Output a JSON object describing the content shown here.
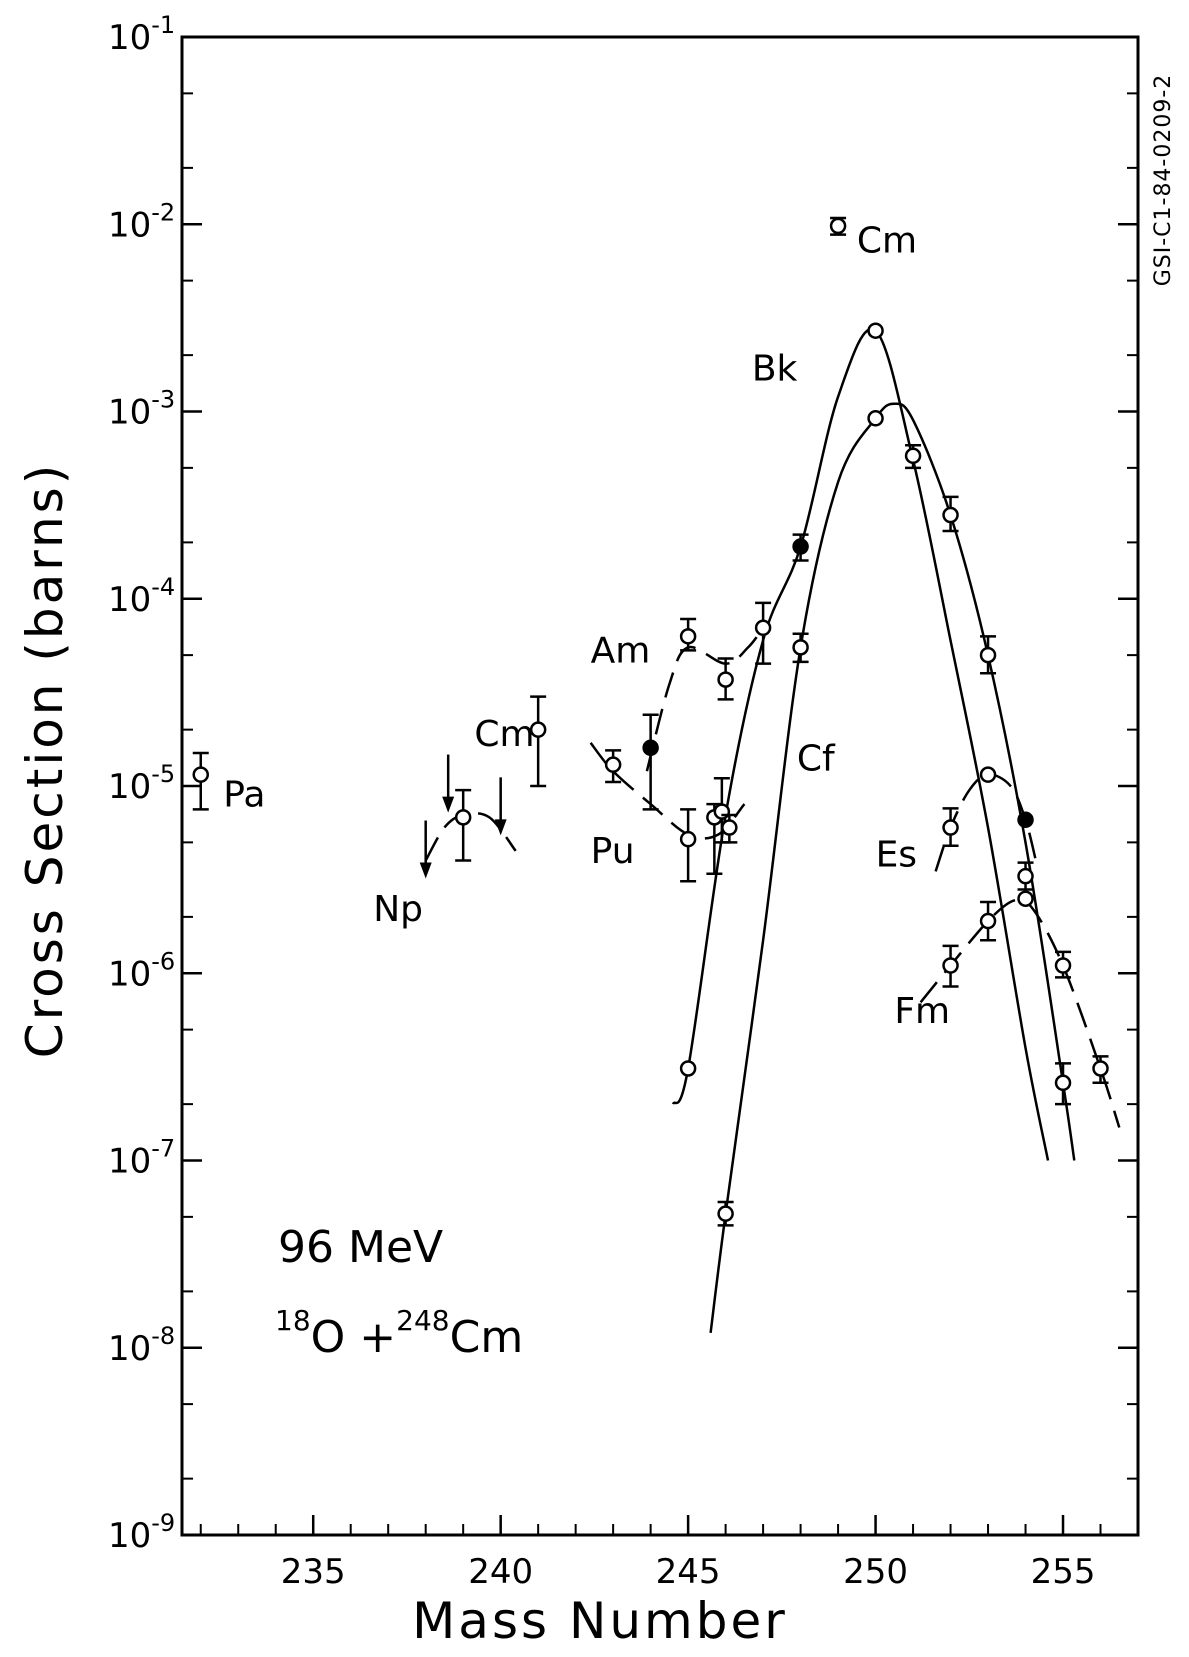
{
  "chart_data": {
    "type": "scatter",
    "title": "",
    "xlabel": "Mass Number",
    "ylabel": "Cross Section (barns)",
    "xlim": [
      231.5,
      257
    ],
    "ylim": [
      1e-09,
      0.1
    ],
    "y_scale": "log",
    "x_ticks": [
      235,
      240,
      245,
      250,
      255
    ],
    "x_tick_labels": [
      "235",
      "240",
      "245",
      "250",
      "255"
    ],
    "y_ticks": [
      {
        "mantissa": "10",
        "exp": "-1"
      },
      {
        "mantissa": "10",
        "exp": "-2"
      },
      {
        "mantissa": "10",
        "exp": "-3"
      },
      {
        "mantissa": "10",
        "exp": "-4"
      },
      {
        "mantissa": "10",
        "exp": "-5"
      },
      {
        "mantissa": "10",
        "exp": "-6"
      },
      {
        "mantissa": "10",
        "exp": "-7"
      },
      {
        "mantissa": "10",
        "exp": "-8"
      },
      {
        "mantissa": "10",
        "exp": "-9"
      }
    ],
    "annotation": {
      "energy": "96 MeV",
      "proj_mass": "18",
      "proj": "O +",
      "target_mass": "248",
      "target": "Cm"
    },
    "side_label": "GSI-C1-84-0209-2",
    "series": [
      {
        "name": "Pa",
        "points": [
          {
            "x": 232,
            "y": 1.15e-05,
            "lo": 7.5e-06,
            "hi": 1.5e-05,
            "filled": false
          }
        ]
      },
      {
        "name": "Np",
        "points": [
          {
            "x": 238,
            "y": 4e-06,
            "upper_limit": true
          },
          {
            "x": 238.6,
            "y": 9e-06,
            "upper_limit": true
          },
          {
            "x": 239,
            "y": 6.8e-06,
            "lo": 4e-06,
            "hi": 9.5e-06,
            "filled": false
          },
          {
            "x": 240,
            "y": 6.8e-06,
            "upper_limit": true
          }
        ]
      },
      {
        "name": "Pu",
        "points": [
          {
            "x": 245,
            "y": 5.2e-06,
            "lo": 3.1e-06,
            "hi": 7.5e-06,
            "filled": false
          },
          {
            "x": 245.7,
            "y": 6.8e-06,
            "lo": 3.4e-06,
            "hi": 8e-06,
            "filled": false
          },
          {
            "x": 245.9,
            "y": 7.3e-06,
            "lo": 5e-06,
            "hi": 1.1e-05,
            "filled": false
          },
          {
            "x": 246.1,
            "y": 6e-06,
            "lo": 5e-06,
            "hi": 7e-06,
            "filled": false
          }
        ]
      },
      {
        "name": "Cm",
        "points": [
          {
            "x": 241,
            "y": 2e-05,
            "lo": 1e-05,
            "hi": 3e-05,
            "filled": false
          },
          {
            "x": 243,
            "y": 1.3e-05,
            "lo": 1.05e-05,
            "hi": 1.55e-05,
            "filled": false
          },
          {
            "x": 244,
            "y": 1.6e-05,
            "lo": 7.5e-06,
            "hi": 2.4e-05,
            "filled": true
          },
          {
            "x": 249,
            "y": 0.0098,
            "lo": 0.0088,
            "hi": 0.0108,
            "filled": false
          }
        ]
      },
      {
        "name": "Am",
        "points": [
          {
            "x": 245,
            "y": 6.3e-05,
            "lo": 5.3e-05,
            "hi": 7.8e-05,
            "filled": false
          },
          {
            "x": 246,
            "y": 3.7e-05,
            "lo": 2.9e-05,
            "hi": 4.8e-05,
            "filled": false
          },
          {
            "x": 247,
            "y": 7e-05,
            "lo": 4.5e-05,
            "hi": 9.5e-05,
            "filled": false
          }
        ]
      },
      {
        "name": "Bk",
        "points": [
          {
            "x": 245,
            "y": 3.1e-07,
            "filled": false
          },
          {
            "x": 248,
            "y": 0.00019,
            "lo": 0.00016,
            "hi": 0.00022,
            "filled": true
          },
          {
            "x": 250,
            "y": 0.0027,
            "filled": false
          }
        ]
      },
      {
        "name": "Cf",
        "points": [
          {
            "x": 246,
            "y": 5.2e-08,
            "lo": 4.5e-08,
            "hi": 6e-08,
            "filled": false
          },
          {
            "x": 248,
            "y": 5.5e-05,
            "lo": 4.6e-05,
            "hi": 6.5e-05,
            "filled": false
          },
          {
            "x": 250,
            "y": 0.00092,
            "filled": false
          },
          {
            "x": 251,
            "y": 0.00058,
            "lo": 0.0005,
            "hi": 0.00066,
            "filled": false
          },
          {
            "x": 252,
            "y": 0.00028,
            "lo": 0.00023,
            "hi": 0.00035,
            "filled": false
          },
          {
            "x": 253,
            "y": 5e-05,
            "lo": 4e-05,
            "hi": 6.3e-05,
            "filled": false
          }
        ]
      },
      {
        "name": "Es",
        "points": [
          {
            "x": 252,
            "y": 6e-06,
            "lo": 4.8e-06,
            "hi": 7.6e-06,
            "filled": false
          },
          {
            "x": 253,
            "y": 1.15e-05,
            "filled": false
          },
          {
            "x": 254,
            "y": 6.6e-06,
            "filled": true
          },
          {
            "x": 254,
            "y": 3.3e-06,
            "lo": 2.8e-06,
            "hi": 3.9e-06,
            "filled": false
          }
        ]
      },
      {
        "name": "Fm",
        "points": [
          {
            "x": 252,
            "y": 1.1e-06,
            "lo": 8.5e-07,
            "hi": 1.4e-06,
            "filled": false
          },
          {
            "x": 253,
            "y": 1.9e-06,
            "lo": 1.5e-06,
            "hi": 2.4e-06,
            "filled": false
          },
          {
            "x": 254,
            "y": 2.5e-06,
            "filled": false
          },
          {
            "x": 255,
            "y": 1.1e-06,
            "lo": 9.5e-07,
            "hi": 1.3e-06,
            "filled": false
          },
          {
            "x": 255,
            "y": 2.6e-07,
            "lo": 2e-07,
            "hi": 3.3e-07,
            "filled": false
          },
          {
            "x": 256,
            "y": 3.1e-07,
            "lo": 2.6e-07,
            "hi": 3.6e-07,
            "filled": false
          }
        ]
      }
    ],
    "curves": [
      {
        "name": "Bk",
        "dashed": false,
        "points": [
          [
            244.6,
            2e-07
          ],
          [
            245,
            3.1e-07
          ],
          [
            246,
            7e-06
          ],
          [
            247,
            6e-05
          ],
          [
            248,
            0.00019
          ],
          [
            249,
            0.0012
          ],
          [
            250,
            0.0027
          ],
          [
            251,
            0.00055
          ],
          [
            252,
            6e-05
          ],
          [
            253,
            6e-06
          ],
          [
            254,
            4e-07
          ],
          [
            254.6,
            1e-07
          ]
        ]
      },
      {
        "name": "Cf",
        "dashed": false,
        "points": [
          [
            245.6,
            1.2e-08
          ],
          [
            246,
            5.2e-08
          ],
          [
            247,
            1.5e-06
          ],
          [
            248,
            5.5e-05
          ],
          [
            249,
            0.00042
          ],
          [
            250,
            0.00092
          ],
          [
            250.5,
            0.0011
          ],
          [
            251,
            0.0009
          ],
          [
            252,
            0.00028
          ],
          [
            253,
            5e-05
          ],
          [
            254,
            5e-06
          ],
          [
            255,
            2.6e-07
          ],
          [
            255.3,
            1e-07
          ]
        ]
      },
      {
        "name": "Am",
        "dashed": true,
        "points": [
          [
            243.9,
            1.2e-05
          ],
          [
            244.5,
            3.5e-05
          ],
          [
            245,
            5.5e-05
          ],
          [
            246,
            4.5e-05
          ],
          [
            246.6,
            5.5e-05
          ],
          [
            247,
            7e-05
          ]
        ]
      },
      {
        "name": "Pu",
        "dashed": true,
        "points": [
          [
            242.4,
            1.7e-05
          ],
          [
            243,
            1.2e-05
          ],
          [
            244,
            8e-06
          ],
          [
            245,
            5.5e-06
          ],
          [
            245.8,
            5.5e-06
          ],
          [
            246.5,
            8e-06
          ]
        ]
      },
      {
        "name": "Np",
        "dashed": true,
        "points": [
          [
            238,
            4e-06
          ],
          [
            238.5,
            6e-06
          ],
          [
            239,
            7e-06
          ],
          [
            239.7,
            6.8e-06
          ],
          [
            240.4,
            4.5e-06
          ]
        ]
      },
      {
        "name": "Es",
        "dashed": true,
        "points": [
          [
            251.6,
            3.5e-06
          ],
          [
            252,
            6e-06
          ],
          [
            252.5,
            9.5e-06
          ],
          [
            253,
            1.15e-05
          ],
          [
            253.6,
            1e-05
          ],
          [
            254,
            6.6e-06
          ],
          [
            254.3,
            3.8e-06
          ]
        ]
      },
      {
        "name": "Fm",
        "dashed": true,
        "points": [
          [
            251.2,
            7e-07
          ],
          [
            252,
            1.1e-06
          ],
          [
            253,
            1.9e-06
          ],
          [
            253.7,
            2.45e-06
          ],
          [
            254.2,
            2.2e-06
          ],
          [
            255,
            1.1e-06
          ],
          [
            256,
            3.1e-07
          ],
          [
            256.5,
            1.5e-07
          ]
        ]
      }
    ],
    "element_labels": [
      {
        "text": "Pa",
        "x": 232.6,
        "y": 9e-06
      },
      {
        "text": "Np",
        "x": 236.6,
        "y": 2.2e-06
      },
      {
        "text": "Cm",
        "x": 239.3,
        "y": 1.9e-05
      },
      {
        "text": "Am",
        "x": 242.4,
        "y": 5.3e-05
      },
      {
        "text": "Pu",
        "x": 242.4,
        "y": 4.5e-06
      },
      {
        "text": "Bk",
        "x": 246.7,
        "y": 0.0017
      },
      {
        "text": "Cf",
        "x": 247.9,
        "y": 1.4e-05
      },
      {
        "text": "Es",
        "x": 250.0,
        "y": 4.3e-06
      },
      {
        "text": "Fm",
        "x": 250.5,
        "y": 6.3e-07
      },
      {
        "text": "Cm",
        "x": 249.5,
        "y": 0.0082
      }
    ]
  }
}
